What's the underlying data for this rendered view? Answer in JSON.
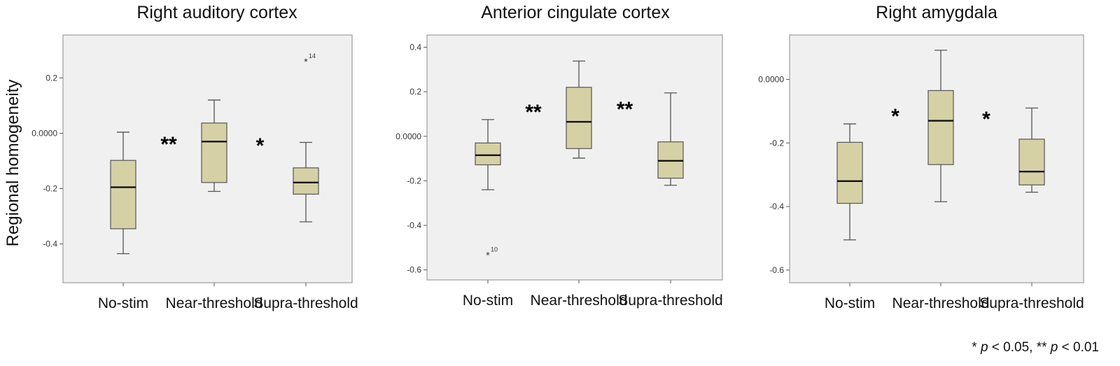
{
  "colors": {
    "box_fill": "#d6d1a5",
    "box_stroke": "#555555",
    "plot_bg": "#f0f0f0",
    "frame": "#8c8c8c",
    "median": "#111111"
  },
  "ylabel": "Regional homogeneity",
  "footnote": {
    "p1_prefix": "* ",
    "p1_var": "p",
    "p1_rest": " < 0.05, ** ",
    "p2_var": "p",
    "p2_rest": " < 0.01"
  },
  "chart_data": [
    {
      "type": "box",
      "title": "Right auditory cortex",
      "ylabel": "Regional homogeneity",
      "ylim": [
        -0.54,
        0.355
      ],
      "yticks": [
        0.2,
        0.0,
        -0.2,
        -0.4
      ],
      "ytick_labels": [
        "0.2",
        "0.0000",
        "-0.2",
        "-0.4"
      ],
      "grid": false,
      "categories": [
        "No-stim",
        "Near-threshold",
        "Supra-threshold"
      ],
      "boxes": [
        {
          "whisker_low": -0.435,
          "q1": -0.345,
          "median": -0.195,
          "q3": -0.098,
          "whisker_high": 0.004
        },
        {
          "whisker_low": -0.21,
          "q1": -0.178,
          "median": -0.03,
          "q3": 0.037,
          "whisker_high": 0.12
        },
        {
          "whisker_low": -0.32,
          "q1": -0.22,
          "median": -0.178,
          "q3": -0.125,
          "whisker_high": -0.033
        }
      ],
      "outliers": [
        {
          "category": "Supra-threshold",
          "value": 0.262,
          "label": "14"
        }
      ],
      "significance": [
        {
          "between": [
            "No-stim",
            "Near-threshold"
          ],
          "label": "**"
        },
        {
          "between": [
            "Near-threshold",
            "Supra-threshold"
          ],
          "label": "*"
        }
      ]
    },
    {
      "type": "box",
      "title": "Anterior cingulate cortex",
      "ylim": [
        -0.645,
        0.455
      ],
      "yticks": [
        0.4,
        0.2,
        0.0,
        -0.2,
        -0.4,
        -0.6
      ],
      "ytick_labels": [
        "0.4",
        "0.2",
        "0.0000",
        "-0.2",
        "-0.4",
        "-0.6"
      ],
      "grid": false,
      "categories": [
        "No-stim",
        "Near-threshold",
        "Supra-threshold"
      ],
      "boxes": [
        {
          "whisker_low": -0.24,
          "q1": -0.128,
          "median": -0.085,
          "q3": -0.03,
          "whisker_high": 0.075
        },
        {
          "whisker_low": -0.098,
          "q1": -0.055,
          "median": 0.065,
          "q3": 0.22,
          "whisker_high": 0.338
        },
        {
          "whisker_low": -0.22,
          "q1": -0.188,
          "median": -0.11,
          "q3": -0.025,
          "whisker_high": 0.195
        }
      ],
      "outliers": [
        {
          "category": "No-stim",
          "value": -0.53,
          "label": "10"
        }
      ],
      "significance": [
        {
          "between": [
            "No-stim",
            "Near-threshold"
          ],
          "label": "**"
        },
        {
          "between": [
            "Near-threshold",
            "Supra-threshold"
          ],
          "label": "**"
        }
      ]
    },
    {
      "type": "box",
      "title": "Right amygdala",
      "ylim": [
        -0.64,
        0.14
      ],
      "yticks": [
        0.0,
        -0.2,
        -0.4,
        -0.6
      ],
      "ytick_labels": [
        "0.0000",
        "-0.2",
        "-0.4",
        "-0.6"
      ],
      "grid": false,
      "categories": [
        "No-stim",
        "Near-threshold",
        "Supra-threshold"
      ],
      "boxes": [
        {
          "whisker_low": -0.505,
          "q1": -0.39,
          "median": -0.32,
          "q3": -0.198,
          "whisker_high": -0.14
        },
        {
          "whisker_low": -0.385,
          "q1": -0.268,
          "median": -0.13,
          "q3": -0.035,
          "whisker_high": 0.092
        },
        {
          "whisker_low": -0.355,
          "q1": -0.332,
          "median": -0.29,
          "q3": -0.188,
          "whisker_high": -0.09
        }
      ],
      "outliers": [],
      "significance": [
        {
          "between": [
            "No-stim",
            "Near-threshold"
          ],
          "label": "*"
        },
        {
          "between": [
            "Near-threshold",
            "Supra-threshold"
          ],
          "label": "*"
        }
      ]
    }
  ]
}
